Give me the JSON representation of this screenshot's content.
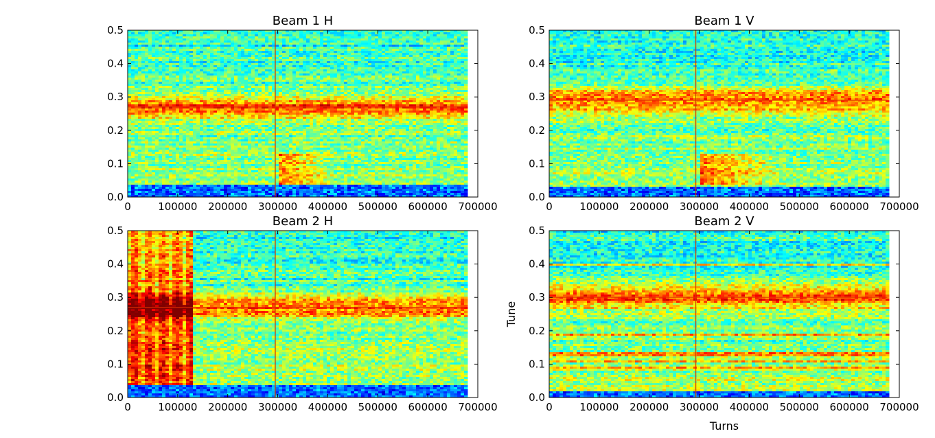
{
  "chart_data": [
    {
      "type": "heatmap",
      "title": "Beam 1 H",
      "xlabel": "",
      "ylabel": "",
      "xlim": [
        0,
        700000
      ],
      "ylim": [
        0.0,
        0.5
      ],
      "data_xmax": 676000,
      "x_ticks": [
        "0",
        "100000",
        "200000",
        "300000",
        "400000",
        "500000",
        "600000",
        "700000"
      ],
      "y_ticks": [
        "0.0",
        "0.1",
        "0.2",
        "0.3",
        "0.4",
        "0.5"
      ],
      "colormap": "jet",
      "features": {
        "tune_lines": [
          0.27
        ],
        "vertical_lines": [
          295000
        ],
        "low_band_below": 0.04,
        "excitation": [
          {
            "x_start": 300000,
            "x_end": 420000,
            "y_low": 0.04,
            "y_high": 0.13
          }
        ]
      }
    },
    {
      "type": "heatmap",
      "title": "Beam 1 V",
      "xlabel": "",
      "ylabel": "",
      "xlim": [
        0,
        700000
      ],
      "ylim": [
        0.0,
        0.5
      ],
      "data_xmax": 676000,
      "x_ticks": [
        "0",
        "100000",
        "200000",
        "300000",
        "400000",
        "500000",
        "600000",
        "700000"
      ],
      "y_ticks": [
        "0.0",
        "0.1",
        "0.2",
        "0.3",
        "0.4",
        "0.5"
      ],
      "colormap": "jet",
      "features": {
        "tune_lines": [
          0.29
        ],
        "vertical_lines": [
          293000
        ],
        "low_band_below": 0.03,
        "excitation": [
          {
            "x_start": 300000,
            "x_end": 480000,
            "y_low": 0.04,
            "y_high": 0.13
          }
        ]
      }
    },
    {
      "type": "heatmap",
      "title": "Beam 2 H",
      "xlabel": "",
      "ylabel": "",
      "xlim": [
        0,
        700000
      ],
      "ylim": [
        0.0,
        0.5
      ],
      "data_xmax": 676000,
      "x_ticks": [
        "0",
        "100000",
        "200000",
        "300000",
        "400000",
        "500000",
        "600000",
        "700000"
      ],
      "y_ticks": [
        "0.0",
        "0.1",
        "0.2",
        "0.3",
        "0.4",
        "0.5"
      ],
      "colormap": "jet",
      "features": {
        "tune_lines": [
          0.27
        ],
        "vertical_lines": [
          295000
        ],
        "low_band_below": 0.04,
        "broadband_region": [
          0,
          130000
        ]
      }
    },
    {
      "type": "heatmap",
      "title": "Beam 2 V",
      "xlabel": "Turns",
      "ylabel": "Tune",
      "xlim": [
        0,
        700000
      ],
      "ylim": [
        0.0,
        0.5
      ],
      "data_xmax": 676000,
      "x_ticks": [
        "0",
        "100000",
        "200000",
        "300000",
        "400000",
        "500000",
        "600000",
        "700000"
      ],
      "y_ticks": [
        "0.0",
        "0.1",
        "0.2",
        "0.3",
        "0.4",
        "0.5"
      ],
      "colormap": "jet",
      "features": {
        "tune_lines": [
          0.3
        ],
        "vertical_lines": [
          293000
        ],
        "low_band_below": 0.02,
        "harmonic_lines": [
          0.4,
          0.19,
          0.13,
          0.11,
          0.09
        ]
      }
    }
  ]
}
